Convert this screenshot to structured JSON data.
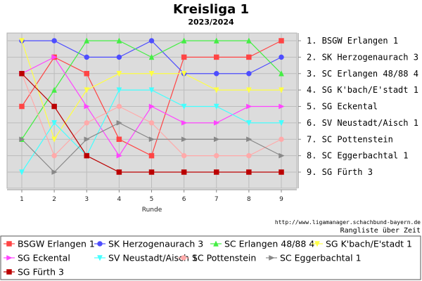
{
  "chart_data": {
    "type": "line",
    "title": "Kreisliga 1",
    "subtitle": "2023/2024",
    "xlabel": "Runde",
    "ylabel": "",
    "x": [
      1,
      2,
      3,
      4,
      5,
      6,
      7,
      8,
      9
    ],
    "ylim": [
      1,
      9
    ],
    "y_inverted": true,
    "grid": true,
    "ranking": [
      "1. BSGW Erlangen 1",
      "2. SK Herzogenaurach 3",
      "3. SC Erlangen 48/88 4",
      "4. SG K'bach/E'stadt 1",
      "5. SG Eckental",
      "6. SV Neustadt/Aisch 1",
      "7. SC Pottenstein",
      "8. SC Eggerbachtal 1",
      "9. SG Fürth 3"
    ],
    "source_text": "http://www.ligamanager.schachbund-bayern.de",
    "note_text": "Rangliste über Zeit",
    "legend_position": "bottom",
    "series": [
      {
        "name": "BSGW Erlangen 1",
        "color": "#ff4444",
        "marker": "square",
        "values": [
          5,
          2,
          3,
          7,
          8,
          2,
          2,
          2,
          1
        ]
      },
      {
        "name": "SK Herzogenaurach 3",
        "color": "#4d4dff",
        "marker": "circle",
        "values": [
          1,
          1,
          2,
          2,
          1,
          3,
          3,
          3,
          2
        ]
      },
      {
        "name": "SC Erlangen 48/88 4",
        "color": "#44ee44",
        "marker": "triangle-up",
        "values": [
          7,
          4,
          1,
          1,
          2,
          1,
          1,
          1,
          3
        ]
      },
      {
        "name": "SG K'bach/E'stadt 1",
        "color": "#ffff44",
        "marker": "triangle-down",
        "values": [
          1,
          7,
          4,
          3,
          3,
          3,
          4,
          4,
          4
        ]
      },
      {
        "name": "SG Eckental",
        "color": "#ff44ff",
        "marker": "triangle-right",
        "values": [
          3,
          2,
          5,
          8,
          5,
          6,
          6,
          5,
          5
        ]
      },
      {
        "name": "SV Neustadt/Aisch 1",
        "color": "#44ffff",
        "marker": "triangle-down",
        "values": [
          9,
          6,
          8,
          4,
          4,
          5,
          5,
          6,
          6
        ]
      },
      {
        "name": "SC Pottenstein",
        "color": "#ffaaaa",
        "marker": "circle",
        "values": [
          3,
          8,
          6,
          5,
          6,
          8,
          8,
          8,
          7
        ]
      },
      {
        "name": "SC Eggerbachtal 1",
        "color": "#888888",
        "marker": "triangle-right",
        "values": [
          7,
          9,
          7,
          6,
          7,
          7,
          7,
          7,
          8
        ]
      },
      {
        "name": "SG Fürth 3",
        "color": "#bb0000",
        "marker": "square",
        "values": [
          3,
          5,
          8,
          9,
          9,
          9,
          9,
          9,
          9
        ]
      }
    ]
  }
}
